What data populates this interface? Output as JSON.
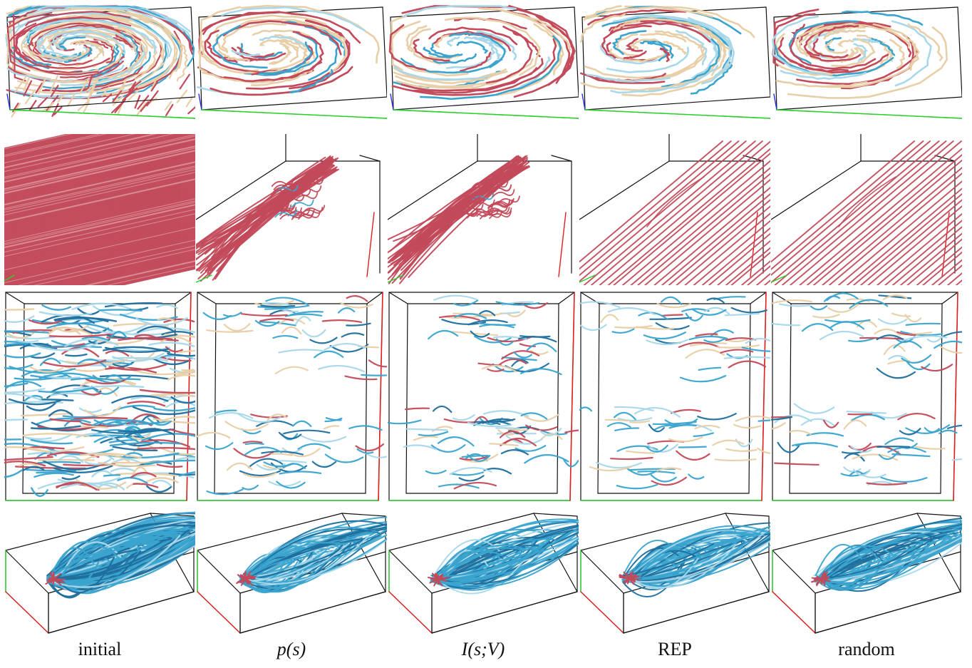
{
  "figure": {
    "columns": [
      {
        "label": "initial",
        "math": false
      },
      {
        "label": "p(s)",
        "math": true
      },
      {
        "label": "I(s;V)",
        "math": true
      },
      {
        "label": "REP",
        "math": false
      },
      {
        "label": "random",
        "math": false
      }
    ],
    "colors": {
      "box_edge": "#111111",
      "axis_x": "#2bd12b",
      "axis_y": "#e02020",
      "axis_z": "#2030e0",
      "red_line": "#c24a5a",
      "blue_line": "#3aa4cf",
      "dark_blue_line": "#1f6f9e",
      "cream_line": "#e8cfa8",
      "pale_blue_line": "#a9d8ea"
    }
  }
}
